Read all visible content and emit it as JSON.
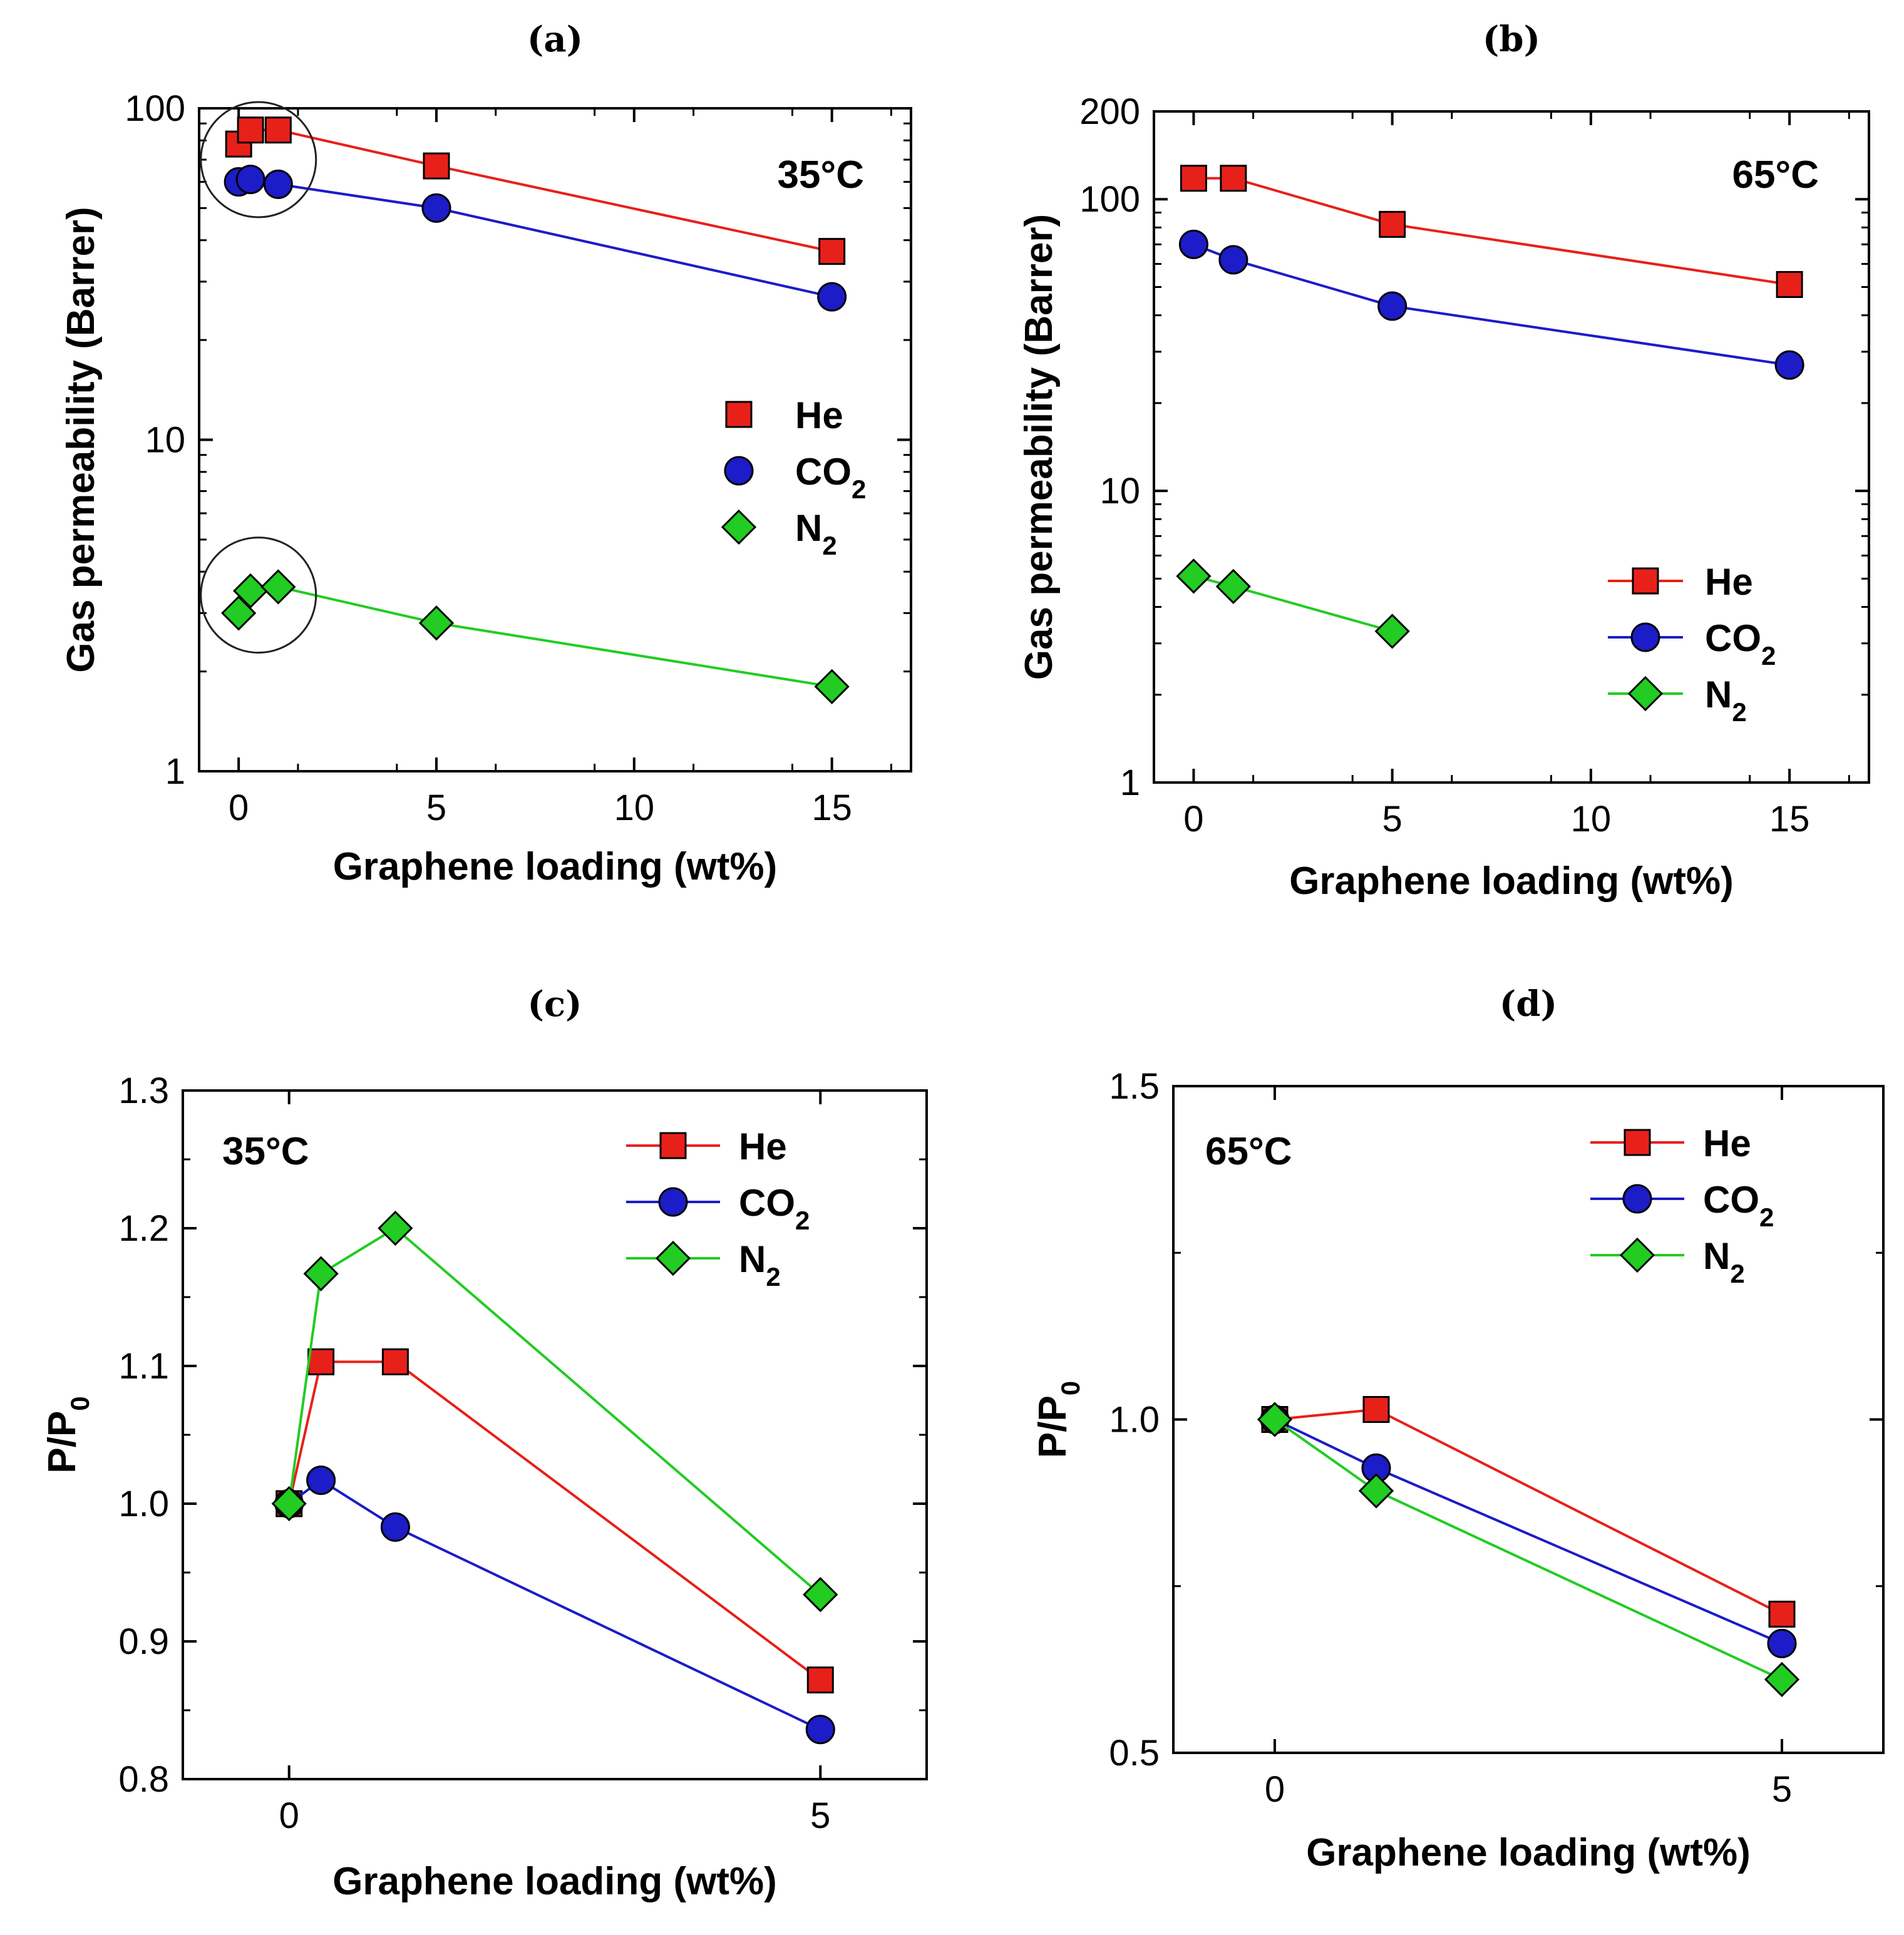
{
  "chart_data": [
    {
      "panel": "(a)",
      "type": "line",
      "yscale": "log",
      "annotation": "35°C",
      "xlabel": "Graphene loading (wt%)",
      "ylabel": "Gas permeability (Barrer)",
      "xlim": [
        -1,
        17
      ],
      "ylim": [
        1,
        100
      ],
      "xticks": [
        "0",
        "5",
        "10",
        "15"
      ],
      "yticks": [
        "1",
        "10",
        "100"
      ],
      "legend_style": "markers",
      "series": [
        {
          "name": "He",
          "sub": "",
          "color": "#e8201a",
          "marker": "square",
          "x": [
            0,
            0.3,
            1,
            5,
            15
          ],
          "y": [
            78,
            86,
            86,
            67,
            37
          ]
        },
        {
          "name": "CO",
          "sub": "2",
          "color": "#1c1cc8",
          "marker": "circle",
          "x": [
            0,
            0.3,
            1,
            5,
            15
          ],
          "y": [
            60,
            61,
            59,
            50,
            27
          ]
        },
        {
          "name": "N",
          "sub": "2",
          "color": "#22cc22",
          "marker": "diamond",
          "x": [
            0,
            0.3,
            1,
            5,
            15
          ],
          "y": [
            3.0,
            3.5,
            3.6,
            2.8,
            1.8
          ]
        }
      ],
      "circles": [
        {
          "x": 0.5,
          "y": 70
        },
        {
          "x": 0.5,
          "y": 3.4
        }
      ]
    },
    {
      "panel": "(b)",
      "type": "line",
      "yscale": "log",
      "annotation": "65°C",
      "xlabel": "Graphene loading (wt%)",
      "ylabel": "Gas permeability (Barrer)",
      "xlim": [
        -1,
        17
      ],
      "ylim": [
        1,
        200
      ],
      "xticks": [
        "0",
        "5",
        "10",
        "15"
      ],
      "yticks": [
        "1",
        "10",
        "100",
        "200"
      ],
      "legend_style": "lines",
      "series": [
        {
          "name": "He",
          "sub": "",
          "color": "#e8201a",
          "marker": "square",
          "x": [
            0,
            1,
            5,
            15
          ],
          "y": [
            118,
            118,
            82,
            51
          ]
        },
        {
          "name": "CO",
          "sub": "2",
          "color": "#1c1cc8",
          "marker": "circle",
          "x": [
            0,
            1,
            5,
            15
          ],
          "y": [
            70,
            62,
            43,
            27
          ]
        },
        {
          "name": "N",
          "sub": "2",
          "color": "#22cc22",
          "marker": "diamond",
          "x": [
            0,
            1,
            5
          ],
          "y": [
            5.1,
            4.7,
            3.3
          ]
        }
      ]
    },
    {
      "panel": "(c)",
      "type": "line",
      "yscale": "linear",
      "annotation": "35°C",
      "xlabel": "Graphene loading (wt%)",
      "ylabel": "P/P",
      "ylabel_sub": "0",
      "xlim": [
        -1,
        6
      ],
      "ylim": [
        0.8,
        1.3
      ],
      "xticks": [
        "0",
        "5"
      ],
      "yticks": [
        "0.8",
        "0.9",
        "1.0",
        "1.1",
        "1.2",
        "1.3"
      ],
      "legend_style": "lines",
      "series": [
        {
          "name": "He",
          "sub": "",
          "color": "#e8201a",
          "marker": "square",
          "x": [
            0,
            0.3,
            1,
            5
          ],
          "y": [
            1.0,
            1.103,
            1.103,
            0.872
          ]
        },
        {
          "name": "CO",
          "sub": "2",
          "color": "#1c1cc8",
          "marker": "circle",
          "x": [
            0,
            0.3,
            1,
            5
          ],
          "y": [
            1.0,
            1.017,
            0.983,
            0.836
          ]
        },
        {
          "name": "N",
          "sub": "2",
          "color": "#22cc22",
          "marker": "diamond",
          "x": [
            0,
            0.3,
            1,
            5
          ],
          "y": [
            1.0,
            1.167,
            1.2,
            0.934
          ]
        }
      ]
    },
    {
      "panel": "(d)",
      "type": "line",
      "yscale": "linear",
      "annotation": "65°C",
      "xlabel": "Graphene loading (wt%)",
      "ylabel": "P/P",
      "ylabel_sub": "0",
      "xlim": [
        -1,
        6
      ],
      "ylim": [
        0.5,
        1.5
      ],
      "xticks": [
        "0",
        "5"
      ],
      "yticks": [
        "0.5",
        "1.0",
        "1.5"
      ],
      "legend_style": "lines",
      "series": [
        {
          "name": "He",
          "sub": "",
          "color": "#e8201a",
          "marker": "square",
          "x": [
            0,
            1,
            5
          ],
          "y": [
            1.0,
            1.015,
            0.708
          ]
        },
        {
          "name": "CO",
          "sub": "2",
          "color": "#1c1cc8",
          "marker": "circle",
          "x": [
            0,
            1,
            5
          ],
          "y": [
            1.0,
            0.927,
            0.664
          ]
        },
        {
          "name": "N",
          "sub": "2",
          "color": "#22cc22",
          "marker": "diamond",
          "x": [
            0,
            1,
            5
          ],
          "y": [
            1.0,
            0.893,
            0.61
          ]
        }
      ]
    }
  ]
}
